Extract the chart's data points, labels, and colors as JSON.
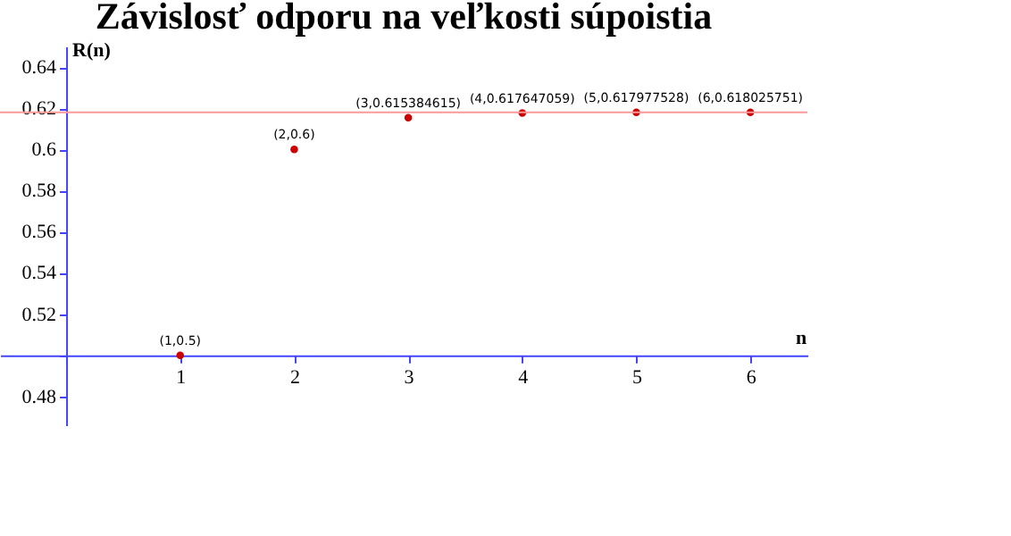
{
  "chart_data": {
    "type": "scatter",
    "title": "Závislosť odporu na veľkosti súpoistia",
    "xlabel": "n",
    "ylabel": "R(n)",
    "x": [
      1,
      2,
      3,
      4,
      5,
      6
    ],
    "series": [
      {
        "color": "#cc0000",
        "values": [
          0.5,
          0.6,
          0.615384615,
          0.617647059,
          0.617977528,
          0.618025751
        ],
        "value_labels": [
          "(1,0.5)",
          "(2,0.6)",
          "(3,0.615384615)",
          "(4,0.617647059)",
          "(5,0.617977528)",
          "(6,0.618025751)"
        ]
      }
    ],
    "xlim": [
      -0.58,
      6.5
    ],
    "xticks": [
      {
        "value": 0,
        "label": null
      },
      1,
      2,
      3,
      4,
      5,
      6
    ],
    "ylim": [
      0.466,
      0.65
    ],
    "yticks": [
      0.48,
      {
        "value": 0.5,
        "label": null
      },
      0.52,
      0.54,
      0.56,
      0.58,
      0.6,
      0.62,
      0.64
    ],
    "ref_lines": [
      {
        "axis": "y",
        "value": 0.618,
        "color": "#ff9999"
      }
    ],
    "grid": false,
    "marker": "circle"
  }
}
